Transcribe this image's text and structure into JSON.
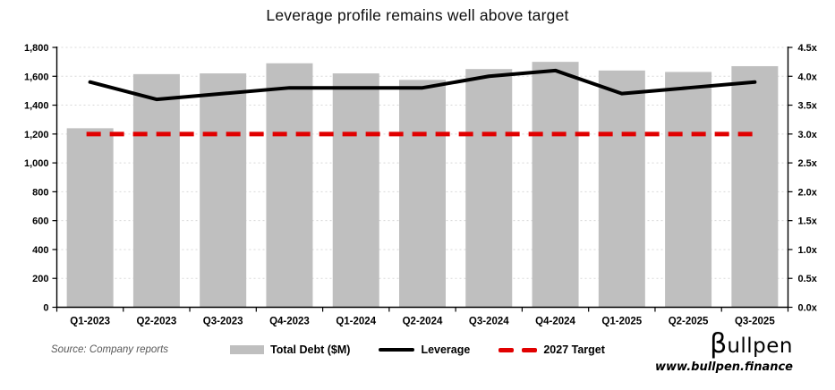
{
  "title": "Leverage profile remains well above target",
  "source_note": "Source: Company reports",
  "brand": {
    "logo_beta": "β",
    "logo_rest": "ullpen",
    "url": "www.bullpen.finance"
  },
  "chart_data": {
    "type": "bar",
    "subtype": "combo bar + line, dual y-axis",
    "title": "Leverage profile remains well above target",
    "categories": [
      "Q1-2023",
      "Q2-2023",
      "Q3-2023",
      "Q4-2023",
      "Q1-2024",
      "Q2-2024",
      "Q3-2024",
      "Q4-2024",
      "Q1-2025",
      "Q2-2025",
      "Q3-2025"
    ],
    "series": [
      {
        "name": "Total Debt ($M)",
        "type": "bar",
        "axis": "left",
        "color": "#bfbfbf",
        "values": [
          1240,
          1615,
          1620,
          1690,
          1620,
          1575,
          1650,
          1700,
          1640,
          1630,
          1670
        ]
      },
      {
        "name": "Leverage",
        "type": "line",
        "axis": "right",
        "color": "#000000",
        "values": [
          3.9,
          3.6,
          3.7,
          3.8,
          3.8,
          3.8,
          4.0,
          4.1,
          3.7,
          3.8,
          3.9
        ]
      },
      {
        "name": "2027 Target",
        "type": "dashed-line",
        "axis": "right",
        "color": "#e10000",
        "constant_value": 3.0
      }
    ],
    "left_axis": {
      "min": 0,
      "max": 1800,
      "step": 200,
      "tick_labels": [
        "0",
        "200",
        "400",
        "600",
        "800",
        "1,000",
        "1,200",
        "1,400",
        "1,600",
        "1,800"
      ]
    },
    "right_axis": {
      "min": 0,
      "max": 4.5,
      "step": 0.5,
      "tick_labels": [
        "0.0x",
        "0.5x",
        "1.0x",
        "1.5x",
        "2.0x",
        "2.5x",
        "3.0x",
        "3.5x",
        "4.0x",
        "4.5x"
      ]
    },
    "grid": "dotted horizontal gridlines",
    "legend_position": "bottom",
    "colors": {
      "bar": "#bfbfbf",
      "line": "#000000",
      "target": "#e10000",
      "grid": "#d8d8d8",
      "axis": "#000000"
    }
  }
}
